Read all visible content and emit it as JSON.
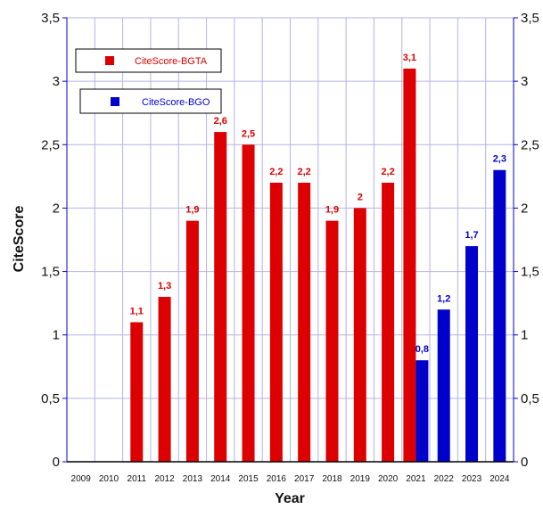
{
  "chart_data": {
    "type": "bar",
    "categories": [
      "2009",
      "2010",
      "2011",
      "2012",
      "2013",
      "2014",
      "2015",
      "2016",
      "2017",
      "2018",
      "2019",
      "2020",
      "2021",
      "2022",
      "2023",
      "2024"
    ],
    "series": [
      {
        "name": "CiteScore-BGTA",
        "color": "#dd0000",
        "values": [
          null,
          null,
          1.1,
          1.3,
          1.9,
          2.6,
          2.5,
          2.2,
          2.2,
          1.9,
          2,
          2.2,
          3.1,
          null,
          null,
          null
        ],
        "labels": [
          null,
          null,
          "1,1",
          "1,3",
          "1,9",
          "2,6",
          "2,5",
          "2,2",
          "2,2",
          "1,9",
          "2",
          "2,2",
          "3,1",
          null,
          null,
          null
        ]
      },
      {
        "name": "CiteScore-BGO",
        "color": "#0000cc",
        "values": [
          null,
          null,
          null,
          null,
          null,
          null,
          null,
          null,
          null,
          null,
          null,
          null,
          0.8,
          1.2,
          1.7,
          2.3
        ],
        "labels": [
          null,
          null,
          null,
          null,
          null,
          null,
          null,
          null,
          null,
          null,
          null,
          null,
          "0,8",
          "1,2",
          "1,7",
          "2,3"
        ]
      }
    ],
    "xlabel": "Year",
    "ylabel": "CiteScore",
    "ylim": [
      0,
      3.5
    ],
    "y_ticks": [
      "0",
      "0,5",
      "1",
      "1,5",
      "2",
      "2,5",
      "3",
      "3,5"
    ],
    "y_tick_values": [
      0,
      0.5,
      1,
      1.5,
      2,
      2.5,
      3,
      3.5
    ],
    "grid": true,
    "grid_color": "#b3b3e6",
    "legend_placement": "top-left",
    "axis_color": "#0000cc"
  }
}
